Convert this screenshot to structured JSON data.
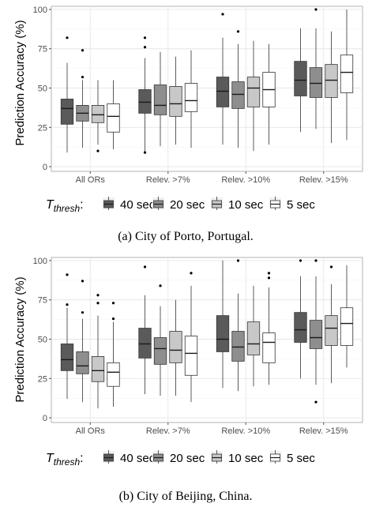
{
  "legend": {
    "title_main": "T",
    "title_sub": "thresh",
    "title_suffix": ":",
    "entries": [
      {
        "label": "40 sec",
        "fill": "#5a5a5a"
      },
      {
        "label": "20 sec",
        "fill": "#8e8e8e"
      },
      {
        "label": "10 sec",
        "fill": "#c8c8c8"
      },
      {
        "label": "5 sec",
        "fill": "#ffffff"
      }
    ]
  },
  "chart_data": [
    {
      "type": "box",
      "caption": "(a) City of Porto, Portugal.",
      "ylabel": "Prediction Accuracy (%)",
      "ylim": [
        -3,
        102
      ],
      "yticks": [
        0,
        25,
        50,
        75,
        100
      ],
      "grid": true,
      "categories": [
        "All ORs",
        "Relev. >7%",
        "Relev. >10%",
        "Relev. >15%"
      ],
      "series": [
        {
          "name": "40 sec",
          "boxes": [
            {
              "whisker_low": 9,
              "q1": 27,
              "median": 37,
              "q3": 43,
              "whisker_high": 66,
              "outliers": [
                82
              ]
            },
            {
              "whisker_low": 9,
              "q1": 34,
              "median": 41,
              "q3": 49,
              "whisker_high": 69,
              "outliers": [
                9,
                76,
                82
              ]
            },
            {
              "whisker_low": 14,
              "q1": 38,
              "median": 48,
              "q3": 57,
              "whisker_high": 82,
              "outliers": [
                97
              ]
            },
            {
              "whisker_low": 22,
              "q1": 45,
              "median": 55,
              "q3": 67,
              "whisker_high": 88,
              "outliers": []
            }
          ]
        },
        {
          "name": "20 sec",
          "boxes": [
            {
              "whisker_low": 12,
              "q1": 29,
              "median": 34,
              "q3": 39,
              "whisker_high": 55,
              "outliers": [
                57,
                74
              ]
            },
            {
              "whisker_low": 13,
              "q1": 33,
              "median": 39,
              "q3": 52,
              "whisker_high": 73,
              "outliers": []
            },
            {
              "whisker_low": 12,
              "q1": 37,
              "median": 46,
              "q3": 54,
              "whisker_high": 78,
              "outliers": [
                86
              ]
            },
            {
              "whisker_low": 24,
              "q1": 44,
              "median": 53,
              "q3": 63,
              "whisker_high": 88,
              "outliers": [
                100
              ]
            }
          ]
        },
        {
          "name": "10 sec",
          "boxes": [
            {
              "whisker_low": 14,
              "q1": 28,
              "median": 33,
              "q3": 39,
              "whisker_high": 55,
              "outliers": [
                10
              ]
            },
            {
              "whisker_low": 14,
              "q1": 32,
              "median": 40,
              "q3": 51,
              "whisker_high": 70,
              "outliers": []
            },
            {
              "whisker_low": 10,
              "q1": 38,
              "median": 50,
              "q3": 57,
              "whisker_high": 80,
              "outliers": []
            },
            {
              "whisker_low": 15,
              "q1": 44,
              "median": 55,
              "q3": 65,
              "whisker_high": 86,
              "outliers": []
            }
          ]
        },
        {
          "name": "5 sec",
          "boxes": [
            {
              "whisker_low": 11,
              "q1": 22,
              "median": 32,
              "q3": 40,
              "whisker_high": 55,
              "outliers": []
            },
            {
              "whisker_low": 12,
              "q1": 35,
              "median": 42,
              "q3": 53,
              "whisker_high": 74,
              "outliers": []
            },
            {
              "whisker_low": 14,
              "q1": 38,
              "median": 49,
              "q3": 60,
              "whisker_high": 78,
              "outliers": []
            },
            {
              "whisker_low": 17,
              "q1": 47,
              "median": 60,
              "q3": 71,
              "whisker_high": 100,
              "outliers": []
            }
          ]
        }
      ]
    },
    {
      "type": "box",
      "caption": "(b) City of Beijing, China.",
      "ylabel": "Prediction Accuracy (%)",
      "ylim": [
        -3,
        102
      ],
      "yticks": [
        0,
        25,
        50,
        75,
        100
      ],
      "grid": true,
      "categories": [
        "All ORs",
        "Relev. >7%",
        "Relev. >10%",
        "Relev. >15%"
      ],
      "series": [
        {
          "name": "40 sec",
          "boxes": [
            {
              "whisker_low": 12,
              "q1": 30,
              "median": 37,
              "q3": 47,
              "whisker_high": 70,
              "outliers": [
                72,
                91
              ]
            },
            {
              "whisker_low": 15,
              "q1": 38,
              "median": 47,
              "q3": 57,
              "whisker_high": 78,
              "outliers": [
                96
              ]
            },
            {
              "whisker_low": 19,
              "q1": 42,
              "median": 50,
              "q3": 65,
              "whisker_high": 100,
              "outliers": []
            },
            {
              "whisker_low": 25,
              "q1": 48,
              "median": 56,
              "q3": 67,
              "whisker_high": 90,
              "outliers": [
                100
              ]
            }
          ]
        },
        {
          "name": "20 sec",
          "boxes": [
            {
              "whisker_low": 10,
              "q1": 28,
              "median": 33,
              "q3": 42,
              "whisker_high": 63,
              "outliers": [
                67,
                87
              ]
            },
            {
              "whisker_low": 14,
              "q1": 34,
              "median": 44,
              "q3": 51,
              "whisker_high": 71,
              "outliers": [
                84
              ]
            },
            {
              "whisker_low": 17,
              "q1": 36,
              "median": 45,
              "q3": 55,
              "whisker_high": 79,
              "outliers": [
                100
              ]
            },
            {
              "whisker_low": 21,
              "q1": 44,
              "median": 51,
              "q3": 62,
              "whisker_high": 90,
              "outliers": [
                10,
                100
              ]
            }
          ]
        },
        {
          "name": "10 sec",
          "boxes": [
            {
              "whisker_low": 6,
              "q1": 23,
              "median": 30,
              "q3": 39,
              "whisker_high": 65,
              "outliers": [
                73,
                78
              ]
            },
            {
              "whisker_low": 14,
              "q1": 35,
              "median": 43,
              "q3": 55,
              "whisker_high": 75,
              "outliers": []
            },
            {
              "whisker_low": 20,
              "q1": 40,
              "median": 47,
              "q3": 61,
              "whisker_high": 84,
              "outliers": []
            },
            {
              "whisker_low": 22,
              "q1": 46,
              "median": 57,
              "q3": 65,
              "whisker_high": 85,
              "outliers": [
                96
              ]
            }
          ]
        },
        {
          "name": "5 sec",
          "boxes": [
            {
              "whisker_low": 7,
              "q1": 20,
              "median": 29,
              "q3": 35,
              "whisker_high": 61,
              "outliers": [
                63,
                73
              ]
            },
            {
              "whisker_low": 10,
              "q1": 27,
              "median": 41,
              "q3": 52,
              "whisker_high": 84,
              "outliers": [
                92
              ]
            },
            {
              "whisker_low": 21,
              "q1": 35,
              "median": 48,
              "q3": 54,
              "whisker_high": 83,
              "outliers": [
                89,
                92
              ]
            },
            {
              "whisker_low": 32,
              "q1": 46,
              "median": 60,
              "q3": 70,
              "whisker_high": 97,
              "outliers": []
            }
          ]
        }
      ]
    }
  ]
}
